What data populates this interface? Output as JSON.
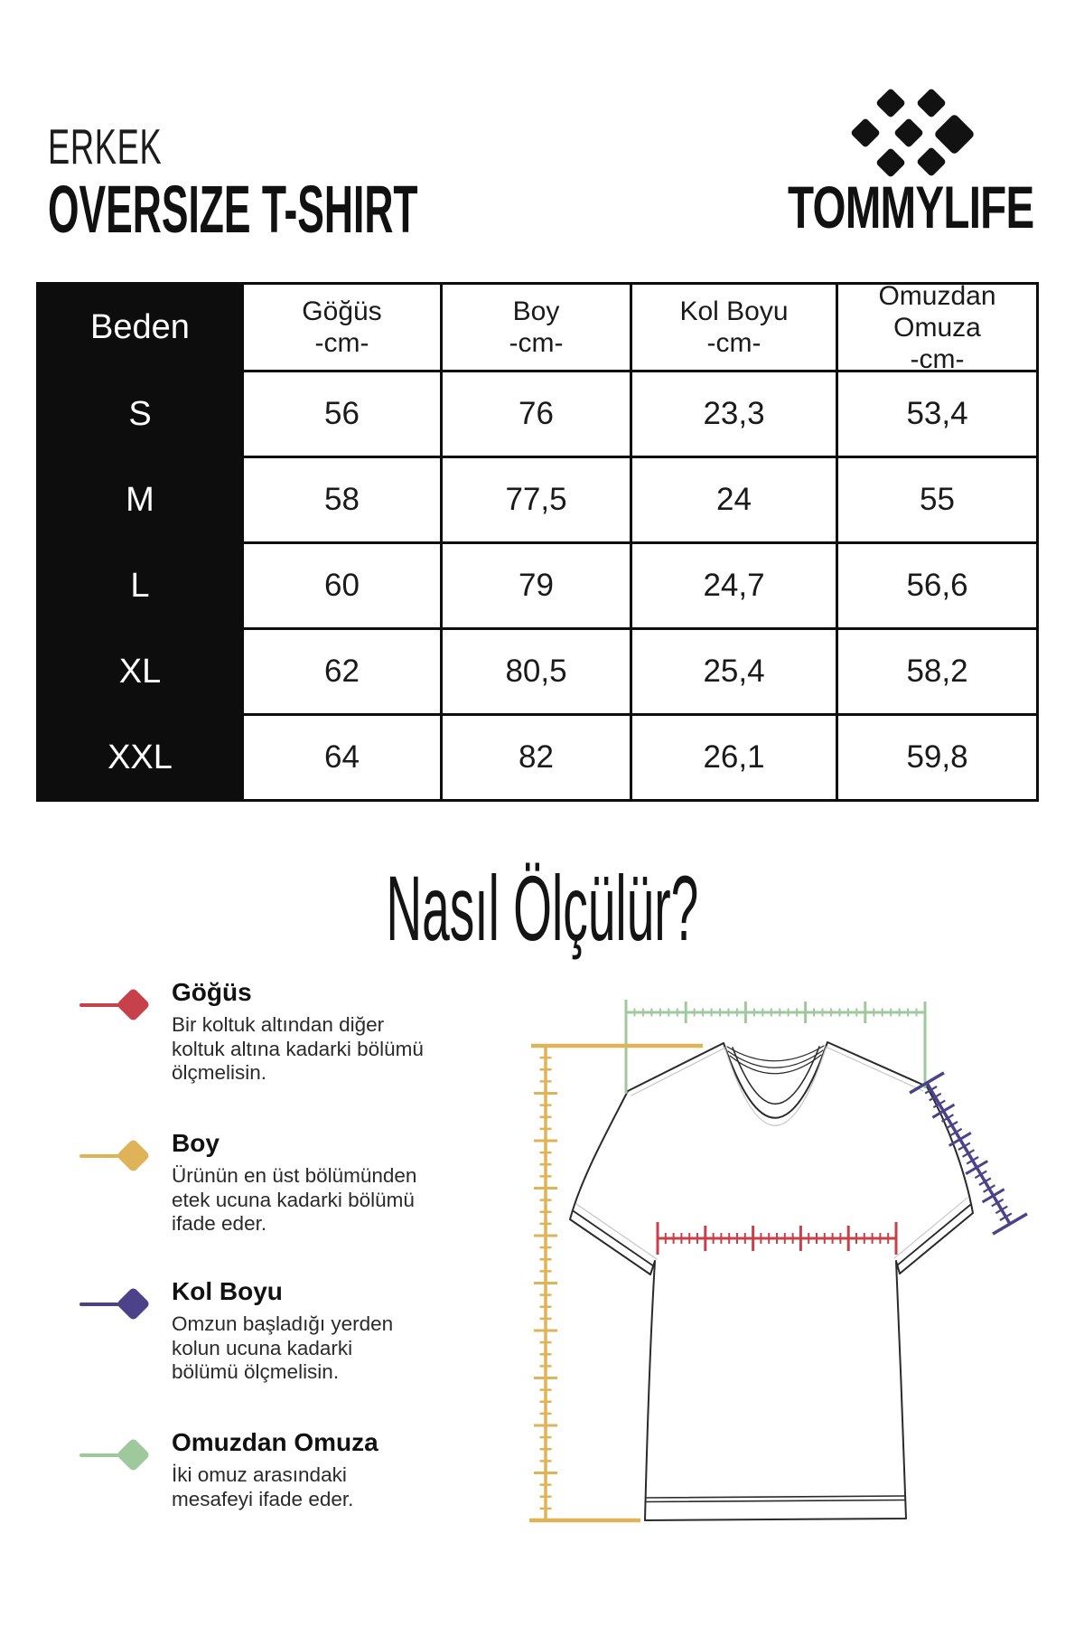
{
  "header": {
    "category": "ERKEK",
    "product": "OVERSIZE T-SHIRT",
    "brand": "TOMMYLIFE"
  },
  "size_table": {
    "corner_label": "Beden",
    "columns": [
      {
        "label": "Göğüs",
        "unit": "-cm-"
      },
      {
        "label": "Boy",
        "unit": "-cm-"
      },
      {
        "label": "Kol Boyu",
        "unit": "-cm-"
      },
      {
        "label": "Omuzdan Omuza",
        "unit": "-cm-"
      }
    ],
    "rows": [
      {
        "size": "S",
        "chest": "56",
        "length": "76",
        "sleeve": "23,3",
        "shoulder": "53,4"
      },
      {
        "size": "M",
        "chest": "58",
        "length": "77,5",
        "sleeve": "24",
        "shoulder": "55"
      },
      {
        "size": "L",
        "chest": "60",
        "length": "79",
        "sleeve": "24,7",
        "shoulder": "56,6"
      },
      {
        "size": "XL",
        "chest": "62",
        "length": "80,5",
        "sleeve": "25,4",
        "shoulder": "58,2"
      },
      {
        "size": "XXL",
        "chest": "64",
        "length": "82",
        "sleeve": "26,1",
        "shoulder": "59,8"
      }
    ]
  },
  "measure_guide": {
    "title": "Nasıl Ölçülür?",
    "items": [
      {
        "title": "Göğüs",
        "color": "#c7414a",
        "lines": [
          "Bir koltuk altından diğer",
          "koltuk altına kadarki bölümü",
          "ölçmelisin."
        ]
      },
      {
        "title": "Boy",
        "color": "#dfb458",
        "lines": [
          "Ürünün en üst bölümünden",
          "etek ucuna kadarki bölümü",
          "ifade eder."
        ]
      },
      {
        "title": "Kol Boyu",
        "color": "#4c4289",
        "lines": [
          "Omzun başladığı yerden",
          "kolun ucuna kadarki",
          "bölümü ölçmelisin."
        ]
      },
      {
        "title": "Omuzdan Omuza",
        "color": "#9fc99c",
        "lines": [
          "İki omuz arasındaki",
          "mesafeyi ifade eder."
        ]
      }
    ]
  }
}
